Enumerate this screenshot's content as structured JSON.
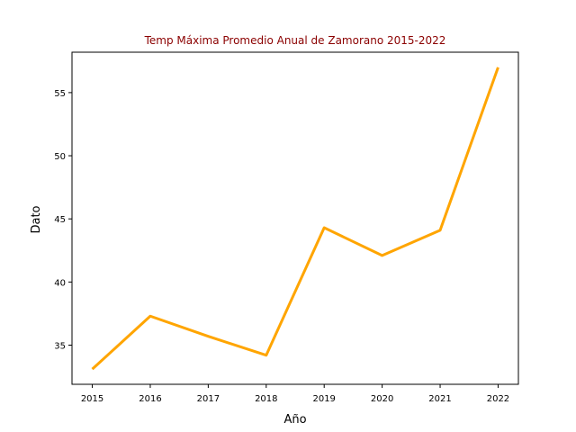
{
  "chart_data": {
    "type": "line",
    "title": "Temp Máxima Promedio Anual de Zamorano 2015-2022",
    "xlabel": "Año",
    "ylabel": "Dato",
    "x": [
      2015,
      2016,
      2017,
      2018,
      2019,
      2020,
      2021,
      2022
    ],
    "series": [
      {
        "values": [
          33.1,
          37.3,
          35.7,
          34.2,
          44.3,
          42.1,
          44.1,
          57.0
        ]
      }
    ],
    "xticks": [
      "2015",
      "2016",
      "2017",
      "2018",
      "2019",
      "2020",
      "2021",
      "2022"
    ],
    "yticks": [
      "35",
      "40",
      "45",
      "50",
      "55"
    ],
    "xlim": [
      2014.65,
      2022.35
    ],
    "ylim": [
      31.9,
      58.2
    ],
    "grid": false,
    "colors": {
      "line": "#FFA500",
      "title": "#8B0000",
      "axis": "#000000"
    }
  }
}
